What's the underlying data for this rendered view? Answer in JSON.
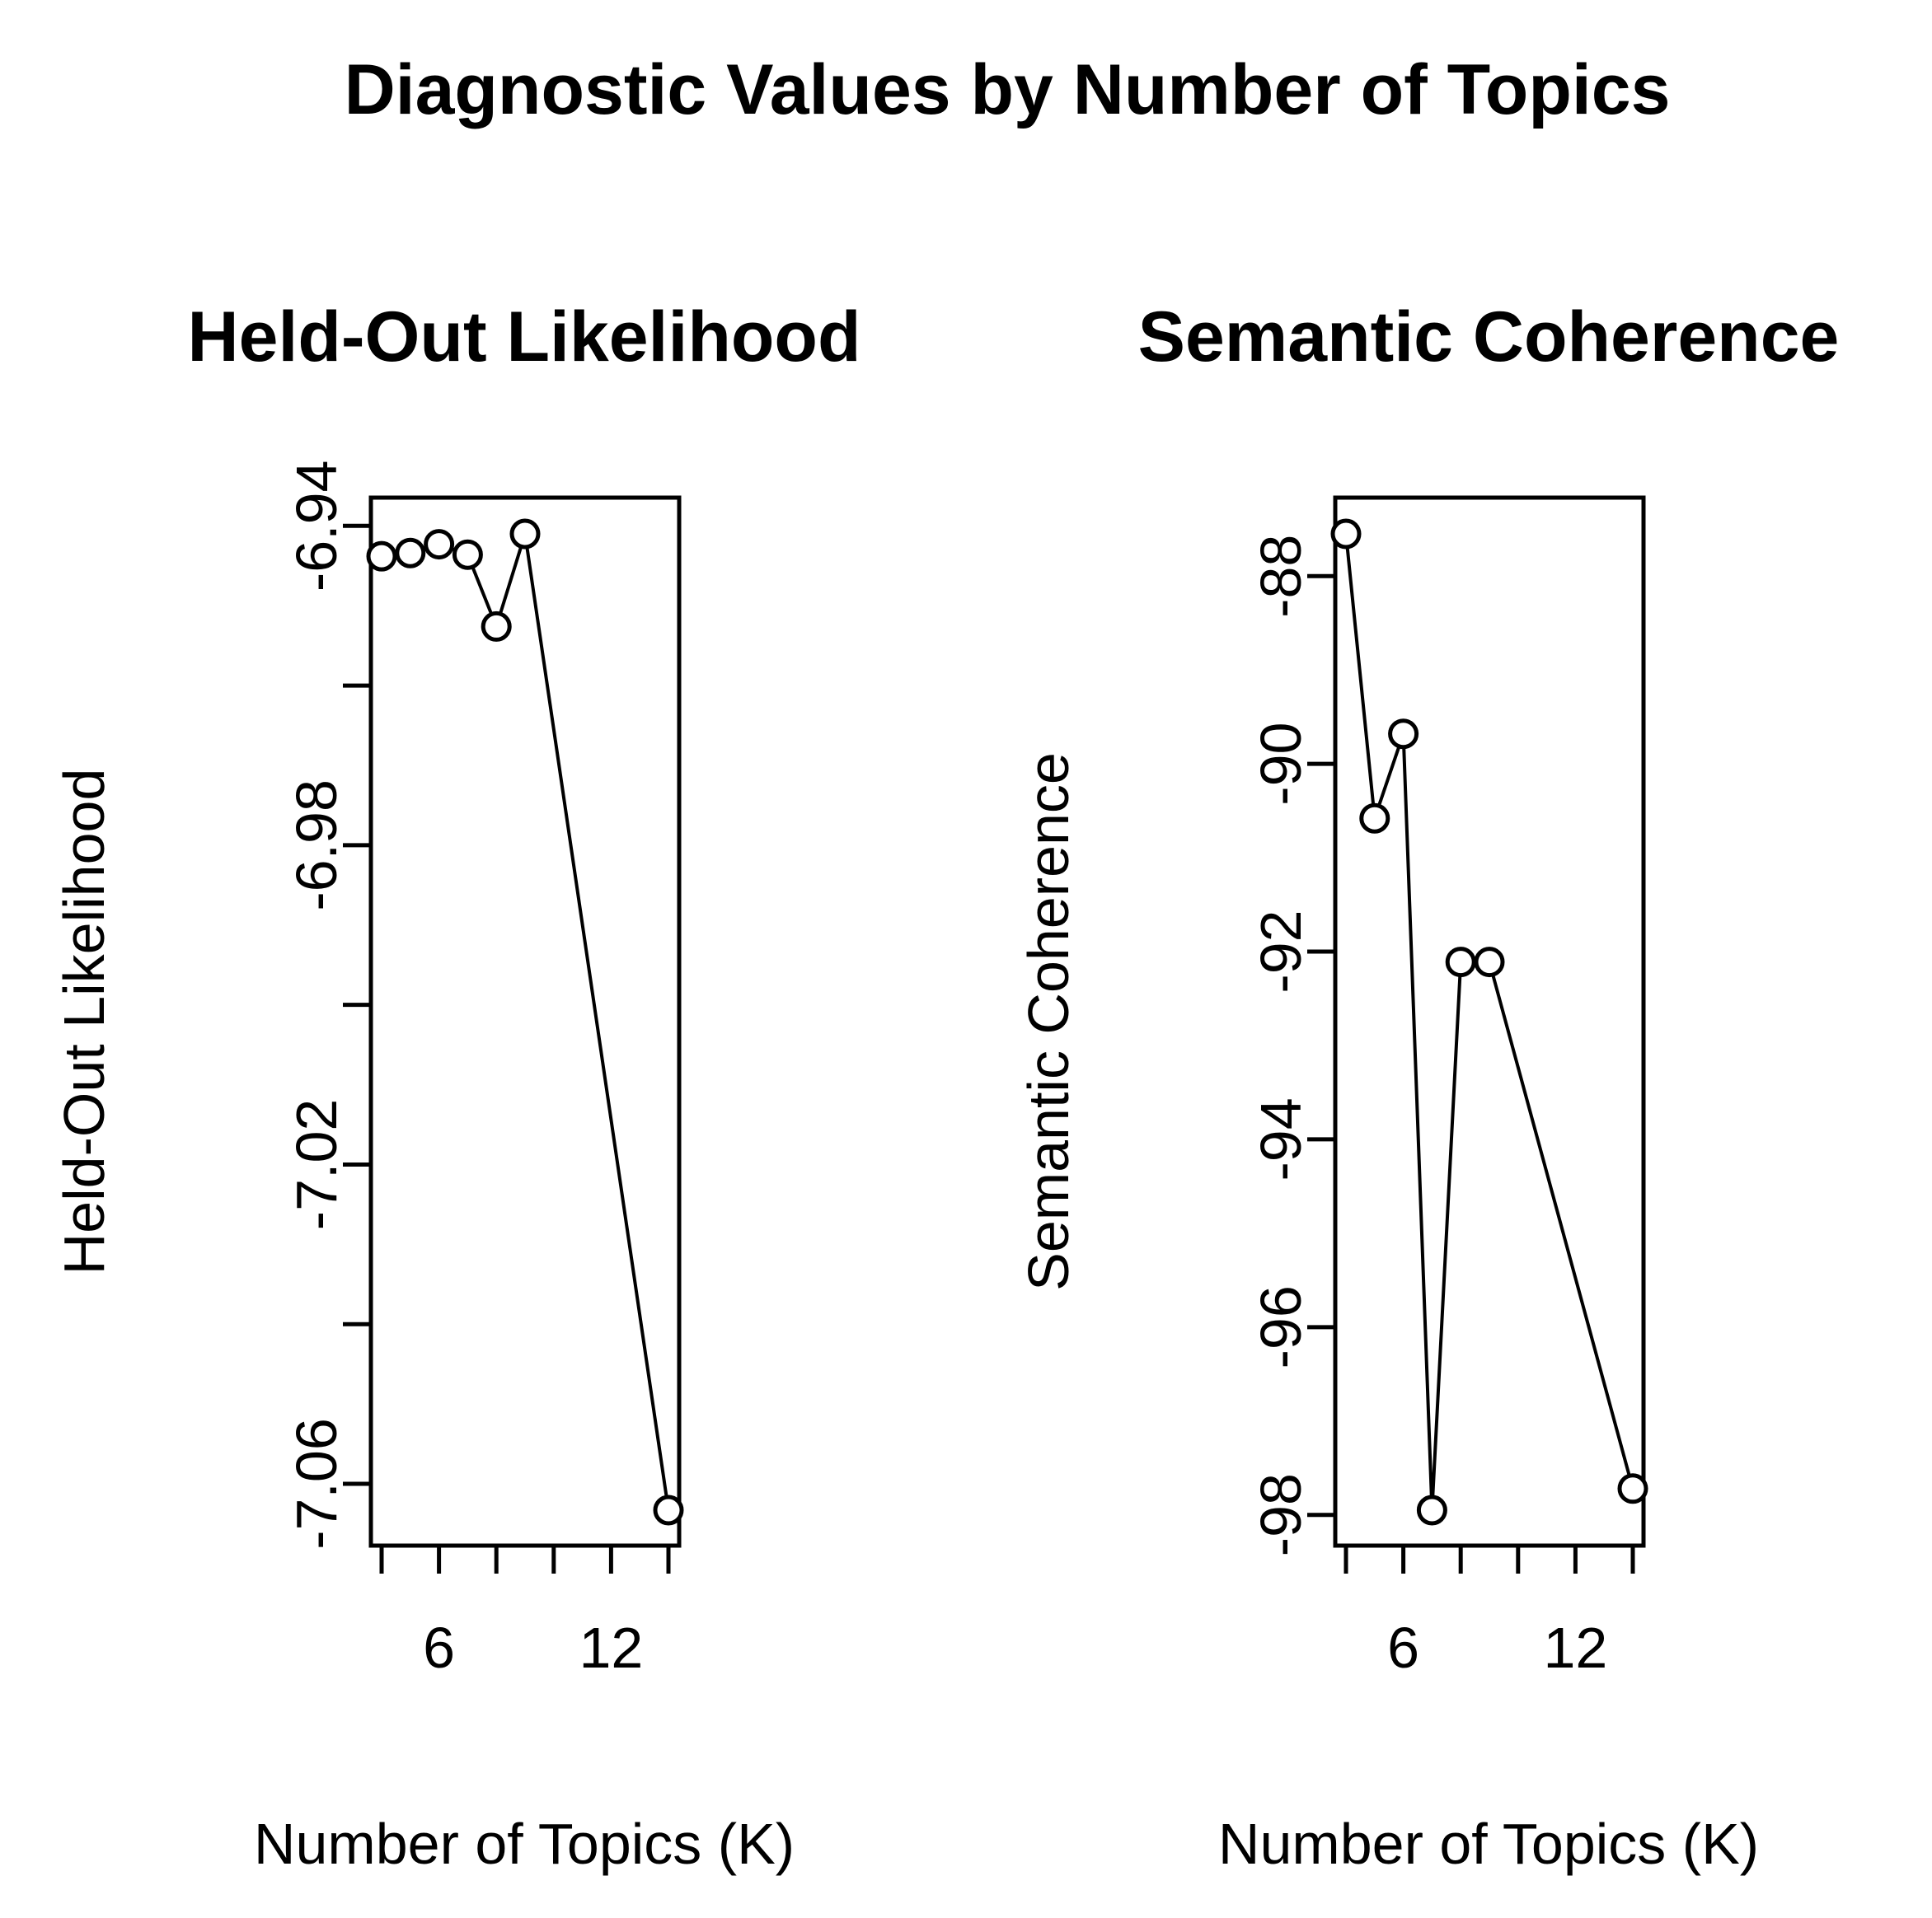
{
  "figure_title": "Diagnostic Values by Number of Topics",
  "chart_data": [
    {
      "type": "line",
      "title": "Held-Out Likelihood",
      "xlabel": "Number of Topics (K)",
      "ylabel": "Held-Out Likelihood",
      "x": [
        4,
        5,
        6,
        7,
        8,
        9,
        14
      ],
      "series": [
        {
          "values": [
            -6.9438,
            -6.9434,
            -6.9423,
            -6.9436,
            -6.9526,
            -6.941,
            -7.0633
          ]
        }
      ],
      "xlim": [
        4,
        14
      ],
      "ylim": [
        -7.0633,
        -6.941
      ],
      "x_ticks": [
        4,
        6,
        8,
        10,
        12,
        14
      ],
      "x_tick_labels": [
        "6",
        "12"
      ],
      "y_ticks": [
        -6.94,
        -6.96,
        -6.98,
        -7.0,
        -7.02,
        -7.04,
        -7.06
      ],
      "y_tick_labels": [
        "-6.94",
        "-6.98",
        "-7.02",
        "-7.06"
      ],
      "grid": false,
      "markers": "open-circle"
    },
    {
      "type": "line",
      "title": "Semantic Coherence",
      "xlabel": "Number of Topics (K)",
      "ylabel": "Semantic Coherence",
      "x": [
        4,
        5,
        6,
        7,
        8,
        9,
        14
      ],
      "series": [
        {
          "values": [
            -87.55,
            -90.58,
            -89.68,
            -97.95,
            -92.11,
            -92.11,
            -97.72
          ]
        }
      ],
      "xlim": [
        4,
        14
      ],
      "ylim": [
        -97.95,
        -87.55
      ],
      "x_ticks": [
        4,
        6,
        8,
        10,
        12,
        14
      ],
      "x_tick_labels": [
        "6",
        "12"
      ],
      "y_ticks": [
        -88,
        -90,
        -92,
        -94,
        -96,
        -98
      ],
      "y_tick_labels": [
        "-88",
        "-90",
        "-92",
        "-94",
        "-96",
        "-98"
      ],
      "grid": false,
      "markers": "open-circle"
    }
  ]
}
